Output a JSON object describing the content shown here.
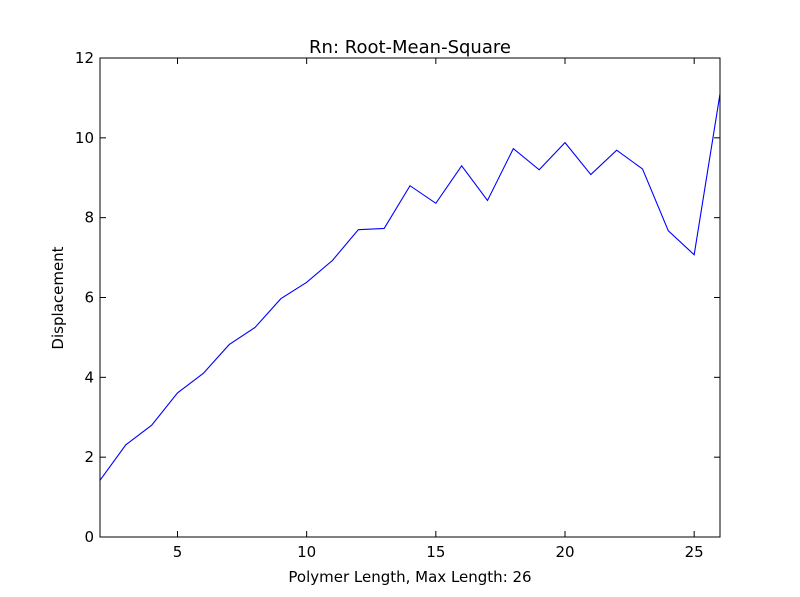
{
  "chart_data": {
    "type": "line",
    "title": "Rn: Root-Mean-Square",
    "xlabel": "Polymer Length, Max Length: 26",
    "ylabel": "Displacement",
    "xlim": [
      2,
      26
    ],
    "ylim": [
      0,
      12
    ],
    "xticks": [
      5,
      10,
      15,
      20,
      25
    ],
    "yticks": [
      0,
      2,
      4,
      6,
      8,
      10,
      12
    ],
    "grid": false,
    "legend": "none",
    "series": [
      {
        "color": "#0000ff",
        "x": [
          2,
          3,
          4,
          5,
          6,
          7,
          8,
          9,
          10,
          11,
          12,
          13,
          14,
          15,
          16,
          17,
          18,
          19,
          20,
          21,
          22,
          23,
          24,
          25,
          26
        ],
        "y": [
          1.42,
          2.31,
          2.8,
          3.61,
          4.1,
          4.82,
          5.25,
          5.97,
          6.38,
          6.93,
          7.7,
          7.73,
          8.8,
          8.36,
          9.3,
          8.43,
          9.73,
          9.2,
          9.88,
          9.08,
          9.69,
          9.22,
          7.67,
          7.07,
          11.1
        ]
      }
    ]
  }
}
